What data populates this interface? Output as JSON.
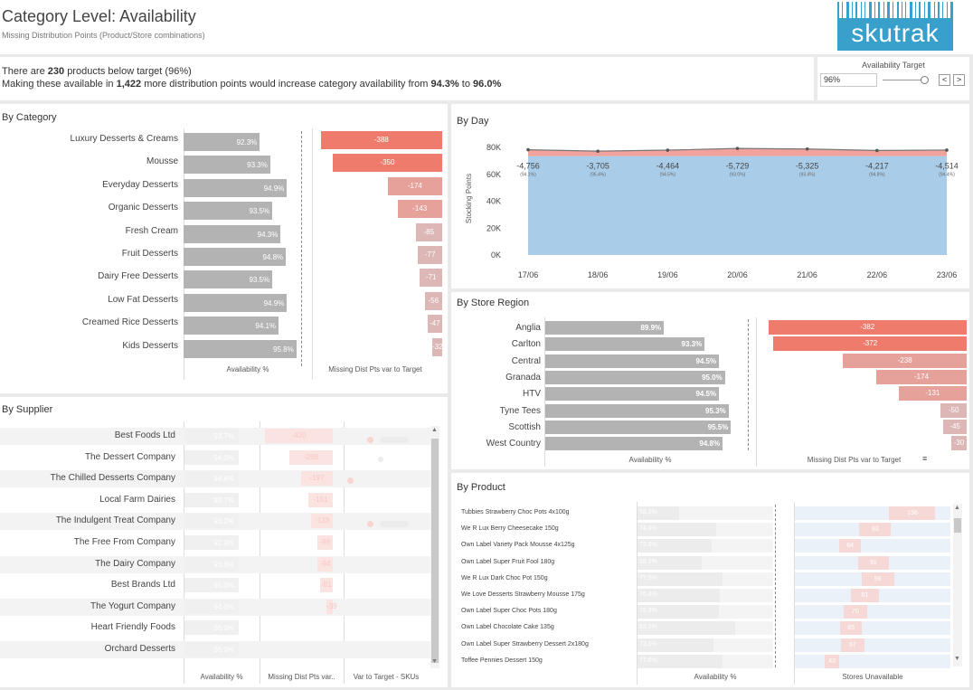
{
  "header": {
    "title": "Category Level: Availability",
    "subtitle": "Missing Distribution Points (Product/Store combinations)",
    "logo_text": "skutrak"
  },
  "summary": {
    "line1_prefix": "There are",
    "line1_count": "230",
    "line1_suffix": "products below target (96%)",
    "line2_prefix": "Making these available in",
    "line2_points": "1,422",
    "line2_mid": "more distribution points would increase category availability from",
    "line2_from": "94.3%",
    "line2_to_word": "to",
    "line2_to": "96.0%"
  },
  "target_control": {
    "label": "Availability Target",
    "value": "96%",
    "prev_label": "<",
    "next_label": ">"
  },
  "by_category": {
    "title": "By Category",
    "axis1": "Availability %",
    "axis2": "Missing Dist Pts var to Target",
    "rows": [
      {
        "label": "Luxury Desserts & Creams",
        "avail": "92.3%",
        "avail_num": 92.3,
        "missing": "-388",
        "missing_num": -388
      },
      {
        "label": "Mousse",
        "avail": "93.3%",
        "avail_num": 93.3,
        "missing": "-350",
        "missing_num": -350
      },
      {
        "label": "Everyday Desserts",
        "avail": "94.9%",
        "avail_num": 94.9,
        "missing": "-174",
        "missing_num": -174
      },
      {
        "label": "Organic Desserts",
        "avail": "93.5%",
        "avail_num": 93.5,
        "missing": "-143",
        "missing_num": -143
      },
      {
        "label": "Fresh Cream",
        "avail": "94.3%",
        "avail_num": 94.3,
        "missing": "-85",
        "missing_num": -85
      },
      {
        "label": "Fruit Desserts",
        "avail": "94.8%",
        "avail_num": 94.8,
        "missing": "-77",
        "missing_num": -77
      },
      {
        "label": "Dairy Free Desserts",
        "avail": "93.5%",
        "avail_num": 93.5,
        "missing": "-71",
        "missing_num": -71
      },
      {
        "label": "Low Fat Desserts",
        "avail": "94.9%",
        "avail_num": 94.9,
        "missing": "-56",
        "missing_num": -56
      },
      {
        "label": "Creamed Rice Desserts",
        "avail": "94.1%",
        "avail_num": 94.1,
        "missing": "-47",
        "missing_num": -47
      },
      {
        "label": "Kids Desserts",
        "avail": "95.8%",
        "avail_num": 95.8,
        "missing": "-32",
        "missing_num": -32
      }
    ]
  },
  "by_supplier": {
    "title": "By Supplier",
    "axis1": "Availability %",
    "axis2": "Missing Dist Pts var..",
    "axis3": "Var to Target - SKUs",
    "rows": [
      {
        "label": "Best Foods Ltd",
        "avail": "93.7%",
        "missing": "-420"
      },
      {
        "label": "The Dessert Company",
        "avail": "94.0%",
        "missing": "-268"
      },
      {
        "label": "The Chilled Desserts Company",
        "avail": "94.6%",
        "missing": "-197"
      },
      {
        "label": "Local Farm Dairies",
        "avail": "93.7%",
        "missing": "-151"
      },
      {
        "label": "The Indulgent Treat Company",
        "avail": "93.2%",
        "missing": "-133"
      },
      {
        "label": "The Free From Company",
        "avail": "92.9%",
        "missing": "-98"
      },
      {
        "label": "The Dairy Company",
        "avail": "93.6%",
        "missing": "-94"
      },
      {
        "label": "Best Brands Ltd",
        "avail": "95.0%",
        "missing": "-81"
      },
      {
        "label": "The Yogurt Company",
        "avail": "94.0%",
        "missing": "-39"
      },
      {
        "label": "Heart Friendly Foods",
        "avail": "96.0%",
        "missing": ""
      },
      {
        "label": "Orchard Desserts",
        "avail": "96.0%",
        "missing": ""
      }
    ]
  },
  "by_day": {
    "title": "By Day",
    "ylabel": "Stocking Points",
    "chart_data": {
      "type": "area",
      "x": [
        "17/06",
        "18/06",
        "19/06",
        "20/06",
        "21/06",
        "22/06",
        "23/06"
      ],
      "yticks": [
        "80K",
        "60K",
        "40K",
        "20K",
        "0K"
      ],
      "ylim": [
        0,
        80000
      ],
      "series": [
        {
          "values": [
            73500,
            73500,
            73500,
            73500,
            73500,
            73500,
            73500
          ]
        },
        {
          "values": [
            78256,
            77205,
            77964,
            79229,
            78825,
            77717,
            78014
          ]
        }
      ],
      "gap_labels": [
        "-4,756",
        "-3,705",
        "-4,464",
        "-5,729",
        "-5,325",
        "-4,217",
        "-4,514"
      ],
      "pct_labels": [
        "(94.1%)",
        "(95.4%)",
        "(94.5%)",
        "(93.0%)",
        "(93.4%)",
        "(94.8%)",
        "(94.4%)"
      ]
    }
  },
  "by_region": {
    "title": "By Store Region",
    "axis1": "Availability %",
    "axis2": "Missing Dist Pts var to Target",
    "rows": [
      {
        "label": "Anglia",
        "avail": "89.9%",
        "avail_num": 89.9,
        "missing": "-382",
        "missing_num": -382
      },
      {
        "label": "Carlton",
        "avail": "93.3%",
        "avail_num": 93.3,
        "missing": "-372",
        "missing_num": -372
      },
      {
        "label": "Central",
        "avail": "94.5%",
        "avail_num": 94.5,
        "missing": "-238",
        "missing_num": -238
      },
      {
        "label": "Granada",
        "avail": "95.0%",
        "avail_num": 95.0,
        "missing": "-174",
        "missing_num": -174
      },
      {
        "label": "HTV",
        "avail": "94.5%",
        "avail_num": 94.5,
        "missing": "-131",
        "missing_num": -131
      },
      {
        "label": "Tyne Tees",
        "avail": "95.3%",
        "avail_num": 95.3,
        "missing": "-50",
        "missing_num": -50
      },
      {
        "label": "Scottish",
        "avail": "95.5%",
        "avail_num": 95.5,
        "missing": "-45",
        "missing_num": -45
      },
      {
        "label": "West Country",
        "avail": "94.8%",
        "avail_num": 94.8,
        "missing": "-30",
        "missing_num": -30
      }
    ]
  },
  "by_product": {
    "title": "By Product",
    "axis1": "Availability %",
    "axis2": "Stores Unavailable",
    "rows": [
      {
        "label": "Tubbies Strawberry Choc Pots 4x100g",
        "avail": "58.2%",
        "stores": "136"
      },
      {
        "label": "We R Lux Berry Cheesecake 150g",
        "avail": "74.6%",
        "stores": "93"
      },
      {
        "label": "Own Label Variety Pack Mousse 4x125g",
        "avail": "72.6%",
        "stores": "64"
      },
      {
        "label": "Own Label Super Fruit Fool 180g",
        "avail": "68.2%",
        "stores": "91"
      },
      {
        "label": "We R Lux Dark Choc Pot 150g",
        "avail": "77.5%",
        "stores": "96"
      },
      {
        "label": "We Love Desserts Strawberry Mousse 175g",
        "avail": "76.4%",
        "stores": "81"
      },
      {
        "label": "Own Label Super Choc Pots 180g",
        "avail": "75.9%",
        "stores": "70"
      },
      {
        "label": "Own Label Chocolate Cake 135g",
        "avail": "83.0%",
        "stores": "65"
      },
      {
        "label": "Own Label Super Strawberry Dessert 2x180g",
        "avail": "73.6%",
        "stores": "67"
      },
      {
        "label": "Toffee Pennies Dessert 150g",
        "avail": "77.6%",
        "stores": "43"
      }
    ]
  },
  "colors": {
    "red_strong": "#ee7b6c",
    "red_mid": "#e6a19b",
    "red_light": "#ddb6b6",
    "grey_bar": "#b3b3b3",
    "area_blue": "#a9cde9",
    "area_red": "#f2a29c",
    "logo_blue": "#39a0cc"
  }
}
